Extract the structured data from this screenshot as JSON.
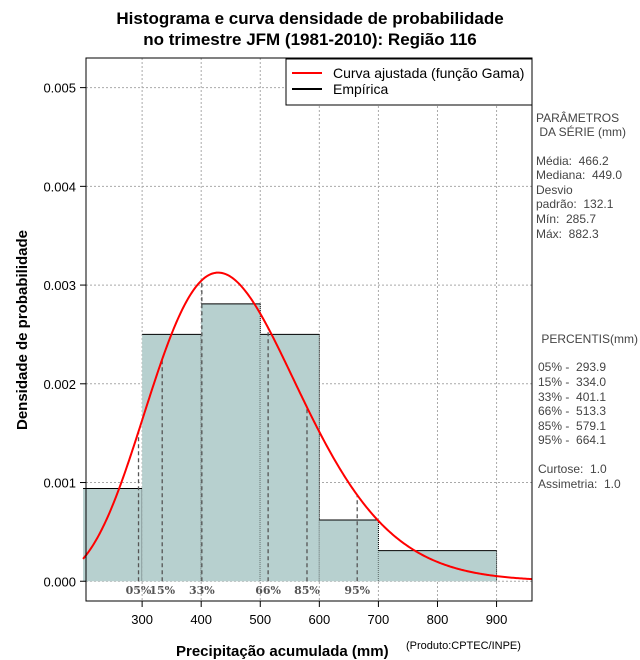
{
  "chart_data": {
    "type": "bar",
    "title_lines": [
      "Histograma e curva densidade de probabilidade",
      "no trimestre JFM (1981-2010): Região 116"
    ],
    "xlabel": "Precipitação acumulada (mm)",
    "ylabel": "Densidade de probabilidade",
    "credit": "(Produto:CPTEC/INPE)",
    "xlim": [
      205,
      960
    ],
    "ylim": [
      -0.0002,
      0.0053
    ],
    "x_ticks": [
      300,
      400,
      500,
      600,
      700,
      800,
      900
    ],
    "y_ticks": [
      0.0,
      0.001,
      0.002,
      0.003,
      0.004,
      0.005
    ],
    "y_tick_labels": [
      "0.000",
      "0.001",
      "0.002",
      "0.003",
      "0.004",
      "0.005"
    ],
    "bins": [
      {
        "from": 200,
        "to": 300,
        "density": 0.00094
      },
      {
        "from": 300,
        "to": 400,
        "density": 0.0025
      },
      {
        "from": 400,
        "to": 500,
        "density": 0.00281
      },
      {
        "from": 500,
        "to": 600,
        "density": 0.0025
      },
      {
        "from": 600,
        "to": 700,
        "density": 0.00062
      },
      {
        "from": 700,
        "to": 900,
        "density": 0.00031
      }
    ],
    "gamma_fit": {
      "mean": 466.2,
      "sd": 132.1,
      "x_from": 200,
      "x_to": 960
    },
    "percentile_lines": [
      {
        "label": "05%",
        "value": 293.9
      },
      {
        "label": "15%",
        "value": 334.0
      },
      {
        "label": "33%",
        "value": 401.1
      },
      {
        "label": "66%",
        "value": 513.3
      },
      {
        "label": "85%",
        "value": 579.1
      },
      {
        "label": "95%",
        "value": 664.1
      }
    ],
    "legend": {
      "position": "top-right",
      "entries": [
        {
          "label": "Curva ajustada (função Gama)",
          "color": "#ff0000"
        },
        {
          "label": "Empírica",
          "color": "#000000"
        }
      ]
    },
    "grid": true,
    "colors": {
      "bar_fill": "#b7d0cf",
      "curve": "#ff0000",
      "grid": "#a9a9a9",
      "percentile": "#555555"
    }
  },
  "sidebar": {
    "params_title_1": "PARÂMETROS",
    "params_title_2": " DA SÉRIE (mm)",
    "media": "Média:  466.2",
    "mediana": "Mediana:  449.0",
    "desvio_1": "Desvio",
    "desvio_2": "padrão:  132.1",
    "min": "Mín:  285.7",
    "max": "Máx:  882.3",
    "percentis_title": " PERCENTIS(mm)",
    "p05": "05% -  293.9",
    "p15": "15% -  334.0",
    "p33": "33% -  401.1",
    "p66": "66% -  513.3",
    "p85": "85% -  579.1",
    "p95": "95% -  664.1",
    "curtose": "Curtose:  1.0",
    "assimetria": "Assimetria:  1.0"
  }
}
